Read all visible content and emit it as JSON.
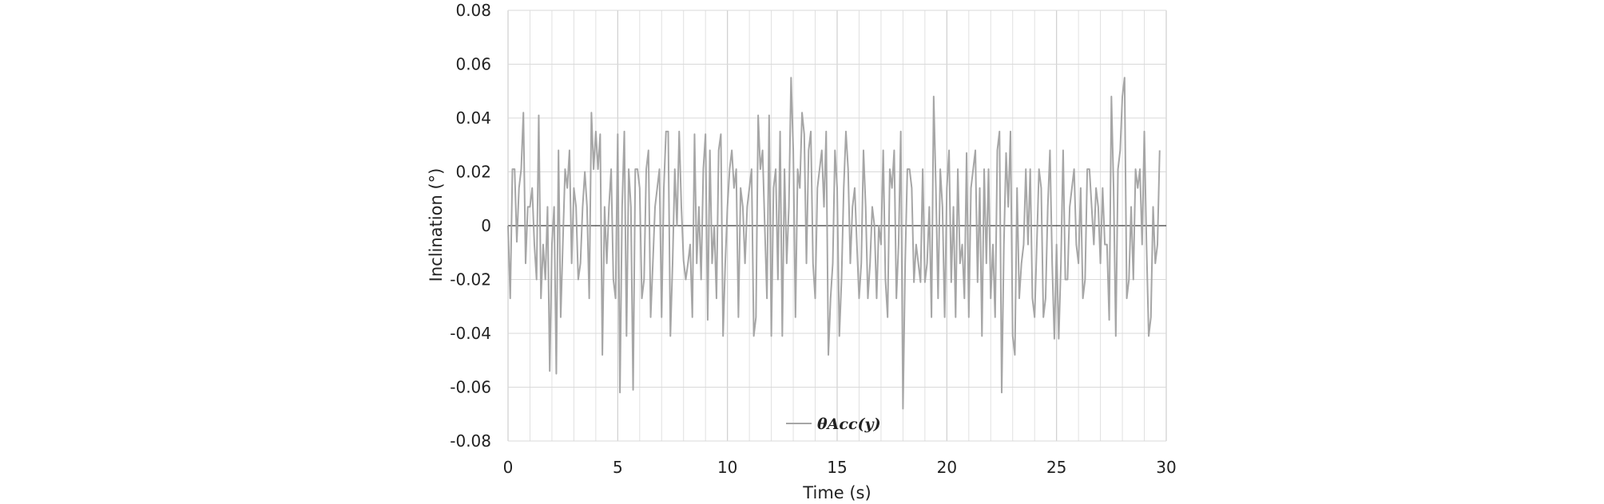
{
  "chart_data": {
    "type": "line",
    "xlabel": "Time (s)",
    "ylabel": "Inclination (°)",
    "xlim": [
      0,
      30
    ],
    "ylim": [
      -0.08,
      0.08
    ],
    "x_ticks": [
      "0",
      "5",
      "10",
      "15",
      "20",
      "25",
      "30"
    ],
    "y_ticks": [
      "0.08",
      "0.06",
      "0.04",
      "0.02",
      "0",
      "-0.02",
      "-0.04",
      "-0.06",
      "-0.08"
    ],
    "grid": true,
    "legend_position": "bottom-center",
    "colors": {
      "series": "#a6a6a6",
      "grid": "#d9d9d9",
      "zero_line": "#595959"
    },
    "series": [
      {
        "name": "θAcc(y)",
        "x_step": 0.1,
        "values": [
          0,
          -0.027,
          0.021,
          0.021,
          -0.006,
          0.014,
          0.021,
          0.042,
          -0.014,
          0.007,
          0.007,
          0.014,
          -0.007,
          -0.02,
          0.041,
          -0.027,
          -0.007,
          -0.02,
          0.007,
          -0.054,
          -0.007,
          0.007,
          -0.055,
          0.028,
          -0.034,
          -0.006,
          0.021,
          0.014,
          0.028,
          -0.014,
          0.014,
          0.007,
          -0.02,
          -0.014,
          0.007,
          0.02,
          0.007,
          -0.027,
          0.042,
          0.021,
          0.035,
          0.021,
          0.034,
          -0.048,
          0.007,
          -0.014,
          0.007,
          0.021,
          -0.02,
          -0.027,
          0.034,
          -0.062,
          0.007,
          0.035,
          -0.041,
          0.021,
          0.007,
          -0.061,
          0.021,
          0.021,
          0.014,
          -0.027,
          -0.02,
          0.021,
          0.028,
          -0.034,
          -0.014,
          0.007,
          0.014,
          0.021,
          -0.034,
          0.014,
          0.035,
          0.035,
          -0.041,
          -0.014,
          0.021,
          0,
          0.035,
          0.007,
          -0.013,
          -0.02,
          -0.014,
          -0.007,
          -0.034,
          0.034,
          -0.014,
          0.007,
          -0.02,
          0.021,
          0.034,
          -0.035,
          0.028,
          -0.014,
          0,
          -0.027,
          0.028,
          0.034,
          -0.041,
          -0.014,
          0.007,
          0.021,
          0.028,
          0.014,
          0.021,
          -0.034,
          0.014,
          0.007,
          -0.014,
          0.007,
          0.014,
          0.021,
          -0.041,
          -0.034,
          0.041,
          0.021,
          0.028,
          0,
          -0.027,
          0.041,
          -0.041,
          0.014,
          0.021,
          -0.02,
          0.035,
          -0.041,
          0.021,
          -0.014,
          0.007,
          0.055,
          0.028,
          -0.034,
          0.021,
          0.014,
          0.042,
          0.034,
          -0.014,
          0.028,
          0.035,
          -0.014,
          -0.027,
          0.014,
          0.021,
          0.028,
          0.007,
          0.035,
          -0.048,
          -0.027,
          -0.014,
          0.028,
          0.014,
          -0.041,
          -0.02,
          0.014,
          0.035,
          0.021,
          -0.014,
          0.007,
          0.014,
          -0.007,
          -0.027,
          -0.014,
          0.028,
          0.007,
          -0.027,
          -0.014,
          0.007,
          0,
          -0.027,
          0,
          -0.007,
          0.028,
          -0.02,
          -0.034,
          0.021,
          0.014,
          0.028,
          -0.027,
          -0.007,
          0.035,
          -0.068,
          -0.014,
          0.021,
          0.021,
          0.014,
          -0.021,
          -0.007,
          -0.014,
          -0.021,
          0.021,
          -0.021,
          -0.014,
          0.007,
          -0.034,
          0.048,
          0.014,
          -0.027,
          0.021,
          0.007,
          -0.034,
          0.014,
          0.028,
          -0.021,
          0.007,
          -0.034,
          0.021,
          -0.014,
          -0.007,
          -0.027,
          0.027,
          -0.034,
          0.014,
          0.021,
          0.028,
          -0.021,
          0.014,
          -0.041,
          0.021,
          -0.014,
          0.021,
          -0.027,
          -0.007,
          -0.034,
          0.028,
          0.035,
          -0.062,
          -0.007,
          0.027,
          0.007,
          0.035,
          -0.041,
          -0.048,
          0.014,
          -0.027,
          -0.014,
          -0.007,
          0.021,
          -0.007,
          0.021,
          -0.027,
          -0.034,
          -0.007,
          0.021,
          0.014,
          -0.034,
          -0.027,
          0.007,
          0.028,
          -0.014,
          -0.042,
          -0.007,
          -0.042,
          -0.014,
          0.028,
          -0.02,
          -0.02,
          0.007,
          0.014,
          0.021,
          -0.007,
          -0.014,
          0.014,
          -0.027,
          -0.02,
          0.021,
          0.021,
          0.007,
          -0.007,
          0.014,
          0.007,
          -0.014,
          0.014,
          -0.007,
          -0.007,
          -0.035,
          0.048,
          0.014,
          -0.041,
          0.021,
          0.028,
          0.048,
          0.055,
          -0.027,
          -0.02,
          0.007,
          -0.02,
          0.021,
          0.014,
          0.021,
          -0.007,
          0.035,
          -0.007,
          -0.041,
          -0.034,
          0.007,
          -0.014,
          -0.007,
          0.028
        ]
      }
    ]
  }
}
